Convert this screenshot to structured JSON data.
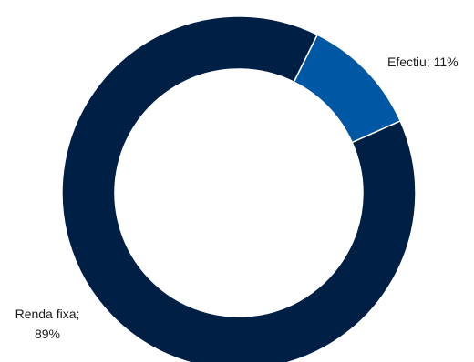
{
  "chart_data": {
    "type": "pie",
    "variant": "donut",
    "title": "",
    "slices": [
      {
        "category": "Efectiu",
        "value": 11,
        "label": "Efectiu; 11%",
        "color": "#0057A4"
      },
      {
        "category": "Renda fixa",
        "value": 89,
        "label_line1": "Renda fixa;",
        "label_line2": "89%",
        "color": "#001F45"
      }
    ],
    "legend": "none"
  }
}
